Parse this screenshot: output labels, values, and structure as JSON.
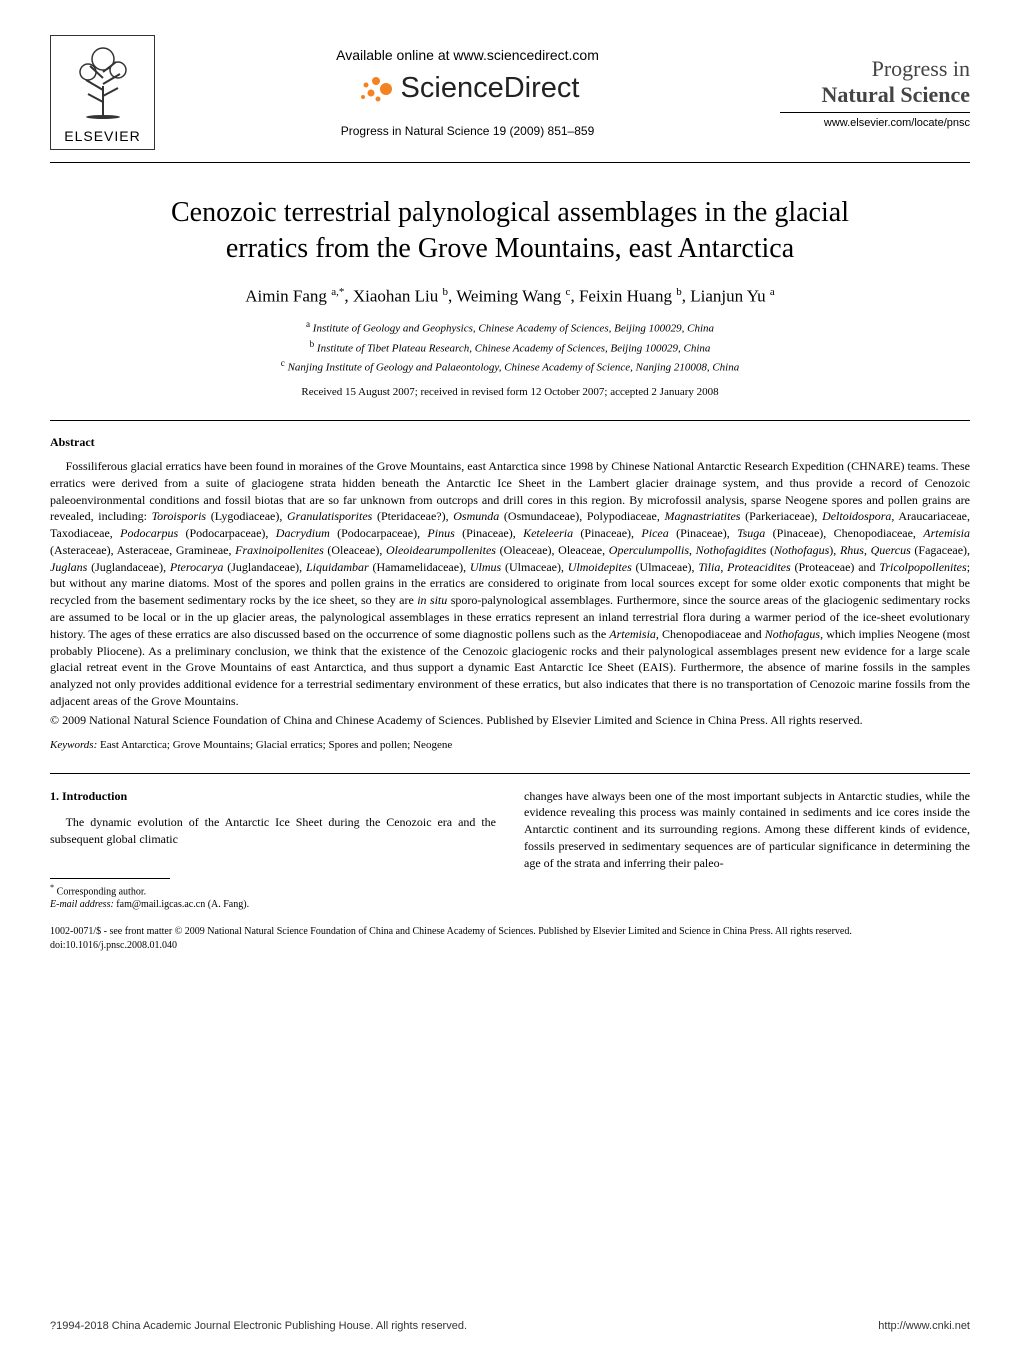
{
  "header": {
    "elsevier_label": "ELSEVIER",
    "available_text": "Available online at www.sciencedirect.com",
    "sciencedirect_text": "ScienceDirect",
    "journal_range": "Progress in Natural Science 19 (2009) 851–859",
    "journal_title_line1": "Progress in",
    "journal_title_line2": "Natural Science",
    "journal_url": "www.elsevier.com/locate/pnsc"
  },
  "article": {
    "title_line1": "Cenozoic terrestrial palynological assemblages in the glacial",
    "title_line2": "erratics from the Grove Mountains, east Antarctica",
    "authors_html": "Aimin Fang <sup>a,*</sup>, Xiaohan Liu <sup>b</sup>, Weiming Wang <sup>c</sup>, Feixin Huang <sup>b</sup>, Lianjun Yu <sup>a</sup>",
    "aff_a": "Institute of Geology and Geophysics, Chinese Academy of Sciences, Beijing 100029, China",
    "aff_b": "Institute of Tibet Plateau Research, Chinese Academy of Sciences, Beijing 100029, China",
    "aff_c": "Nanjing Institute of Geology and Palaeontology, Chinese Academy of Science, Nanjing 210008, China",
    "received": "Received 15 August 2007; received in revised form 12 October 2007; accepted 2 January 2008"
  },
  "abstract": {
    "heading": "Abstract",
    "body": "Fossiliferous glacial erratics have been found in moraines of the Grove Mountains, east Antarctica since 1998 by Chinese National Antarctic Research Expedition (CHNARE) teams. These erratics were derived from a suite of glaciogene strata hidden beneath the Antarctic Ice Sheet in the Lambert glacier drainage system, and thus provide a record of Cenozoic paleoenvironmental conditions and fossil biotas that are so far unknown from outcrops and drill cores in this region. By microfossil analysis, sparse Neogene spores and pollen grains are revealed, including: <span class=\"taxon\">Toroisporis</span> (Lygodiaceae), <span class=\"taxon\">Granulatisporites</span> (Pteridaceae?), <span class=\"taxon\">Osmunda</span> (Osmundaceae), Polypodiaceae, <span class=\"taxon\">Magnastriatites</span> (Parkeriaceae), <span class=\"taxon\">Deltoidospora</span>, Araucariaceae, Taxodiaceae, <span class=\"taxon\">Podocarpus</span> (Podocarpaceae), <span class=\"taxon\">Dacrydium</span> (Podocarpaceae), <span class=\"taxon\">Pinus</span> (Pinaceae), <span class=\"taxon\">Keteleeria</span> (Pinaceae), <span class=\"taxon\">Picea</span> (Pinaceae), <span class=\"taxon\">Tsuga</span> (Pinaceae), Chenopodiaceae, <span class=\"taxon\">Artemisia</span> (Asteraceae), Asteraceae, Gramineae, <span class=\"taxon\">Fraxinoipollenites</span> (Oleaceae), <span class=\"taxon\">Oleoidearumpollenites</span> (Oleaceae), Oleaceae, <span class=\"taxon\">Operculumpollis</span>, <span class=\"taxon\">Nothofagidites</span> (<span class=\"taxon\">Nothofagus</span>), <span class=\"taxon\">Rhus</span>, <span class=\"taxon\">Quercus</span> (Fagaceae), <span class=\"taxon\">Juglans</span> (Juglandaceae), <span class=\"taxon\">Pterocarya</span> (Juglandaceae), <span class=\"taxon\">Liquidambar</span> (Hamamelidaceae), <span class=\"taxon\">Ulmus</span> (Ulmaceae), <span class=\"taxon\">Ulmoidepites</span> (Ulmaceae), <span class=\"taxon\">Tilia</span>, <span class=\"taxon\">Proteacidites</span> (Proteaceae) and <span class=\"taxon\">Tricolpopollenites</span>; but without any marine diatoms. Most of the spores and pollen grains in the erratics are considered to originate from local sources except for some older exotic components that might be recycled from the basement sedimentary rocks by the ice sheet, so they are <span class=\"taxon\">in situ</span> sporo-palynological assemblages. Furthermore, since the source areas of the glaciogenic sedimentary rocks are assumed to be local or in the up glacier areas, the palynological assemblages in these erratics represent an inland terrestrial flora during a warmer period of the ice-sheet evolutionary history. The ages of these erratics are also discussed based on the occurrence of some diagnostic pollens such as the <span class=\"taxon\">Artemisia,</span> Chenopodiaceae and <span class=\"taxon\">Nothofagus</span>, which implies Neogene (most probably Pliocene). As a preliminary conclusion, we think that the existence of the Cenozoic glaciogenic rocks and their palynological assemblages present new evidence for a large scale glacial retreat event in the Grove Mountains of east Antarctica, and thus support a dynamic East Antarctic Ice Sheet (EAIS). Furthermore, the absence of marine fossils in the samples analyzed not only provides additional evidence for a terrestrial sedimentary environment of these erratics, but also indicates that there is no transportation of Cenozoic marine fossils from the adjacent areas of the Grove Mountains.",
    "copyright": "© 2009 National Natural Science Foundation of China and Chinese Academy of Sciences. Published by Elsevier Limited and Science in China Press. All rights reserved."
  },
  "keywords": {
    "label": "Keywords:",
    "text": " East Antarctica; Grove Mountains; Glacial erratics; Spores and pollen; Neogene"
  },
  "intro": {
    "heading": "1. Introduction",
    "left_para": "The dynamic evolution of the Antarctic Ice Sheet during the Cenozoic era and the subsequent global climatic",
    "right_para": "changes have always been one of the most important subjects in Antarctic studies, while the evidence revealing this process was mainly contained in sediments and ice cores inside the Antarctic continent and its surrounding regions. Among these different kinds of evidence, fossils preserved in sedimentary sequences are of particular significance in determining the age of the strata and inferring their paleo-"
  },
  "footnote": {
    "corr_label": "Corresponding author.",
    "email_label": "E-mail address:",
    "email_value": " fam@mail.igcas.ac.cn (A. Fang)."
  },
  "bottom": {
    "issn": "1002-0071/$ - see front matter © 2009 National Natural Science Foundation of China and Chinese Academy of Sciences. Published by Elsevier Limited and Science in China Press. All rights reserved.",
    "doi": "doi:10.1016/j.pnsc.2008.01.040"
  },
  "footer": {
    "left": "?1994-2018 China Academic Journal Electronic Publishing House. All rights reserved.",
    "right": "http://www.cnki.net"
  },
  "colors": {
    "text": "#000000",
    "bg": "#ffffff",
    "elsevier_orange": "#e67817",
    "sd_orange": "#f58220"
  }
}
